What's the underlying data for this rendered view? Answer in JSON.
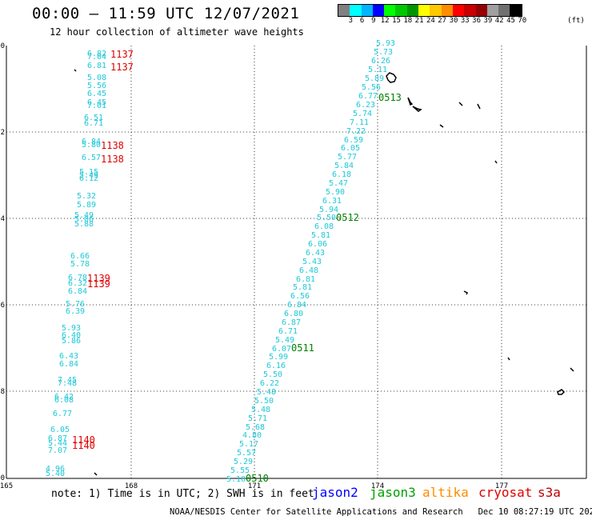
{
  "header": {
    "title": "00:00 – 11:59 UTC 12/07/2021",
    "subtitle": "12 hour collection of altimeter wave heights"
  },
  "legend": {
    "unit": "(ft)",
    "colors": [
      "#808080",
      "#00ffff",
      "#00b4ff",
      "#0000ff",
      "#00ff00",
      "#00c800",
      "#009600",
      "#ffff00",
      "#ffc800",
      "#ff8c00",
      "#ff0000",
      "#c80000",
      "#960000",
      "#a0a0a0",
      "#707070",
      "#000000"
    ],
    "labels": [
      "3",
      "6",
      "9",
      "12",
      "15",
      "18",
      "21",
      "24",
      "27",
      "30",
      "33",
      "36",
      "39",
      "42",
      "45",
      "70"
    ]
  },
  "axes": {
    "lon_ticks": [
      "165",
      "168",
      "171",
      "174",
      "177"
    ],
    "lat_ticks": [
      "0",
      "-2",
      "-4",
      "-6",
      "-8",
      "-10"
    ]
  },
  "observations": {
    "left_track": [
      [
        "6.82",
        109,
        70
      ],
      [
        "7.04",
        109,
        74
      ],
      [
        "6.81",
        109,
        85
      ],
      [
        "5.08",
        109,
        100
      ],
      [
        "5.56",
        109,
        110
      ],
      [
        "6.45",
        109,
        120
      ],
      [
        "6.45",
        109,
        131
      ],
      [
        "7.01",
        109,
        135
      ],
      [
        "6.51",
        105,
        150
      ],
      [
        "6.71",
        105,
        157
      ],
      [
        "6.84",
        102,
        180
      ],
      [
        "5.80",
        102,
        184
      ],
      [
        "6.57",
        102,
        200
      ],
      [
        "5.15",
        99,
        218
      ],
      [
        "5.49",
        99,
        222
      ],
      [
        "6.12",
        99,
        226
      ],
      [
        "5.32",
        96,
        248
      ],
      [
        "5.89",
        96,
        259
      ],
      [
        "5.49",
        93,
        272
      ],
      [
        "5.06",
        93,
        277
      ],
      [
        "5.88",
        93,
        283
      ],
      [
        "6.66",
        88,
        323
      ],
      [
        "5.78",
        88,
        333
      ],
      [
        "6.78",
        85,
        350
      ],
      [
        "6.32",
        85,
        357
      ],
      [
        "6.84",
        85,
        367
      ],
      [
        "5.76",
        82,
        383
      ],
      [
        "6.39",
        82,
        392
      ],
      [
        "5.93",
        77,
        413
      ],
      [
        "6.40",
        77,
        422
      ],
      [
        "5.86",
        77,
        429
      ],
      [
        "6.43",
        74,
        448
      ],
      [
        "6.84",
        74,
        458
      ],
      [
        "7.45",
        72,
        478
      ],
      [
        "7.48",
        72,
        482
      ],
      [
        "6.42",
        68,
        499
      ],
      [
        "6.08",
        68,
        503
      ],
      [
        "6.77",
        66,
        520
      ],
      [
        "6.05",
        63,
        540
      ],
      [
        "6.87",
        60,
        551
      ],
      [
        "5.44",
        60,
        557
      ],
      [
        "7.07",
        60,
        566
      ],
      [
        "4.96",
        57,
        589
      ],
      [
        "5.40",
        57,
        595
      ]
    ],
    "right_track": [
      [
        "5.93",
        470,
        57
      ],
      [
        "5.73",
        467,
        68
      ],
      [
        "6.26",
        464,
        79
      ],
      [
        "5.11",
        460,
        90
      ],
      [
        "5.89",
        456,
        101
      ],
      [
        "5.56",
        452,
        112
      ],
      [
        "6.77",
        448,
        123
      ],
      [
        "6.23",
        445,
        134
      ],
      [
        "5.74",
        441,
        145
      ],
      [
        "7.11",
        437,
        156
      ],
      [
        "7.22",
        433,
        167
      ],
      [
        "6.59",
        430,
        178
      ],
      [
        "6.05",
        426,
        188
      ],
      [
        "5.77",
        422,
        199
      ],
      [
        "5.84",
        418,
        210
      ],
      [
        "6.18",
        415,
        221
      ],
      [
        "5.47",
        411,
        232
      ],
      [
        "5.90",
        407,
        243
      ],
      [
        "6.31",
        403,
        254
      ],
      [
        "5.94",
        399,
        265
      ],
      [
        "5.50",
        396,
        275
      ],
      [
        "6.08",
        393,
        286
      ],
      [
        "5.81",
        389,
        297
      ],
      [
        "6.06",
        385,
        308
      ],
      [
        "6.43",
        382,
        319
      ],
      [
        "5.43",
        378,
        330
      ],
      [
        "6.48",
        374,
        341
      ],
      [
        "6.81",
        370,
        352
      ],
      [
        "5.81",
        366,
        362
      ],
      [
        "6.56",
        363,
        373
      ],
      [
        "6.84",
        359,
        384
      ],
      [
        "6.80",
        355,
        395
      ],
      [
        "6.87",
        352,
        406
      ],
      [
        "6.71",
        348,
        417
      ],
      [
        "5.49",
        344,
        428
      ],
      [
        "6.07",
        340,
        439
      ],
      [
        "5.99",
        336,
        449
      ],
      [
        "6.16",
        333,
        460
      ],
      [
        "5.50",
        329,
        471
      ],
      [
        "6.22",
        325,
        482
      ],
      [
        "5.48",
        321,
        493
      ],
      [
        "5.50",
        318,
        504
      ],
      [
        "5.48",
        314,
        515
      ],
      [
        "5.71",
        310,
        526
      ],
      [
        "5.68",
        307,
        537
      ],
      [
        "4.80",
        303,
        547
      ],
      [
        "5.17",
        299,
        558
      ],
      [
        "5.57",
        296,
        569
      ],
      [
        "5.29",
        292,
        580
      ],
      [
        "5.55",
        288,
        591
      ],
      [
        "5.10",
        283,
        602
      ]
    ],
    "red_times": [
      [
        "1137",
        138,
        72
      ],
      [
        "1137",
        138,
        88
      ],
      [
        "1138",
        126,
        186
      ],
      [
        "1138",
        126,
        203
      ],
      [
        "1139",
        109,
        352
      ],
      [
        "1139",
        109,
        359
      ],
      [
        "1140",
        90,
        554
      ],
      [
        "1140",
        90,
        561
      ]
    ],
    "green_times": [
      [
        "0513",
        473,
        126
      ],
      [
        "0512",
        420,
        276
      ],
      [
        "0511",
        364,
        439
      ],
      [
        "0510",
        307,
        602
      ]
    ]
  },
  "footer": {
    "note": "note: 1) Time is in UTC; 2) SWH is in feet",
    "satellites": {
      "jason2": {
        "label": "jason2",
        "color": "#0000ff"
      },
      "jason3": {
        "label": "jason3",
        "color": "#00a000"
      },
      "altika": {
        "label": "altika",
        "color": "#ff8c00"
      },
      "cryosat": {
        "label": "cryosat",
        "color": "#e00000"
      },
      "s3a": {
        "label": "s3a",
        "color": "#c00000"
      }
    },
    "credit": "NOAA/NESDIS Center for Satellite Applications and Research   Dec 10 08:27:19 UTC 2021"
  }
}
